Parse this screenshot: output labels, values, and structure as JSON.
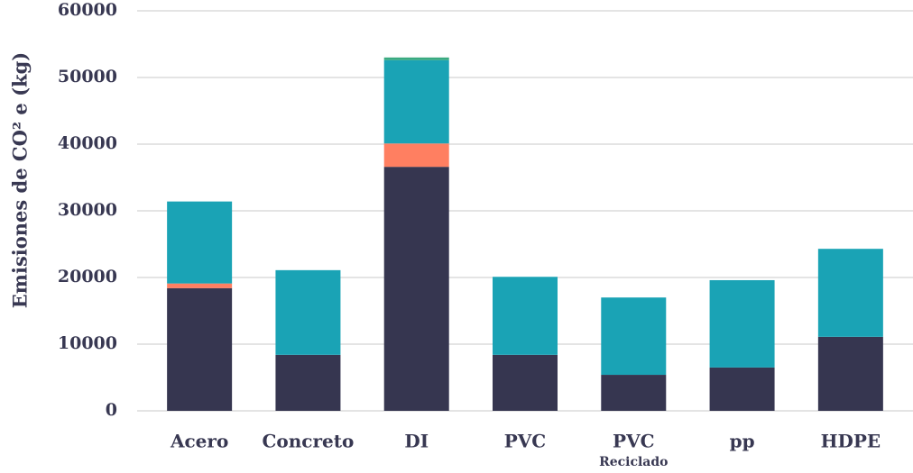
{
  "chart_data": {
    "type": "bar",
    "stacked": true,
    "y_label": "Emisiones de CO² e (kg)",
    "categories": [
      "Acero",
      "Concreto",
      "DI",
      "PVC",
      "PVC",
      "pp",
      "HDPE"
    ],
    "category_sublabels": [
      null,
      null,
      null,
      null,
      "Reciclado",
      null,
      null
    ],
    "series": [
      {
        "color": "#363650",
        "values": [
          18400,
          8400,
          36600,
          8400,
          5400,
          6500,
          11100
        ]
      },
      {
        "color": "#ff7f61",
        "values": [
          700,
          0,
          3500,
          0,
          0,
          0,
          0
        ]
      },
      {
        "color": "#1aa3b5",
        "values": [
          12300,
          12700,
          12500,
          11700,
          11600,
          13100,
          13200
        ]
      },
      {
        "color": "#3aaa80",
        "values": [
          0,
          0,
          400,
          0,
          0,
          0,
          0
        ]
      }
    ],
    "ylim": [
      0,
      60000
    ],
    "yticks": [
      0,
      10000,
      20000,
      30000,
      40000,
      50000,
      60000
    ],
    "grid": true
  }
}
